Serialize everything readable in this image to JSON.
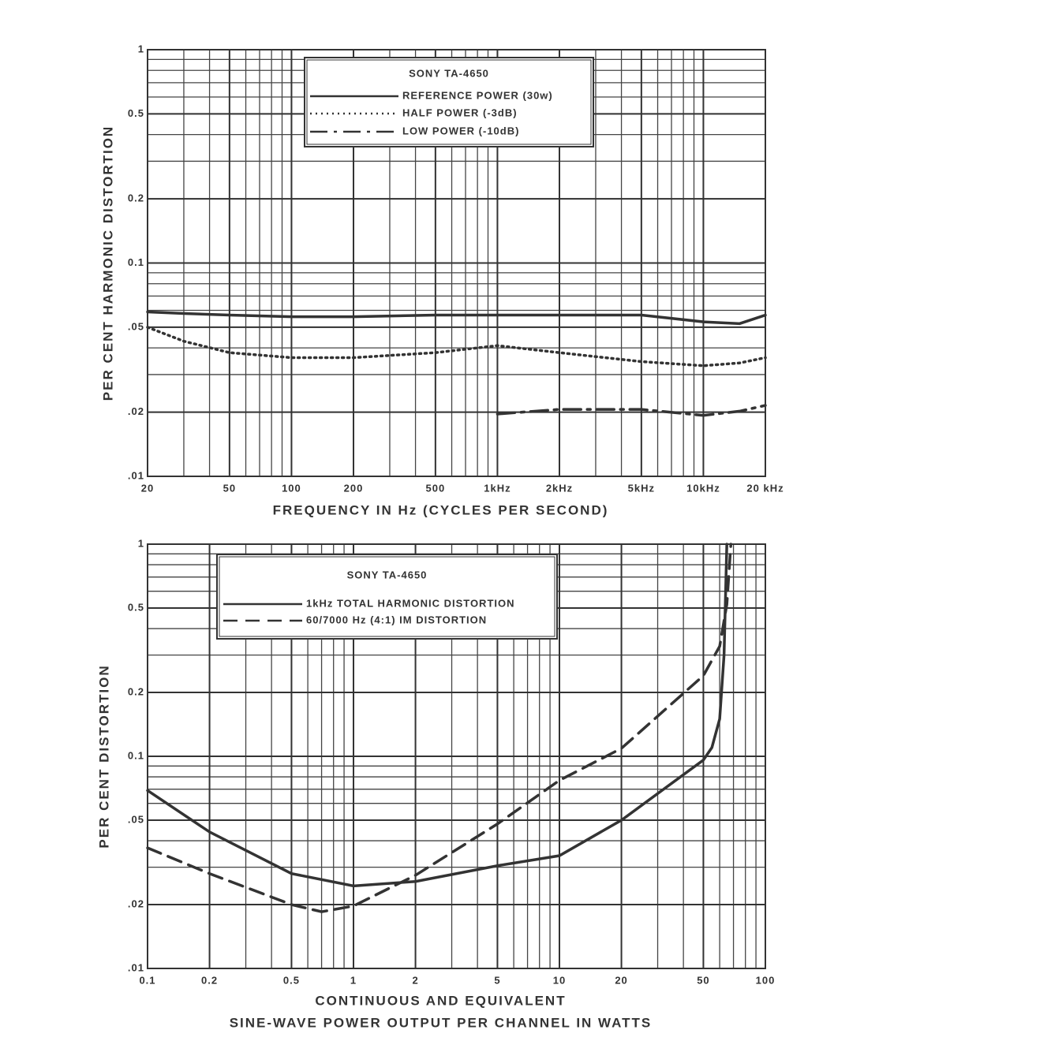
{
  "chart_data": [
    {
      "type": "line",
      "ylabel": "PER CENT HARMONIC DISTORTION",
      "xlabel": "FREQUENCY IN Hz (CYCLES PER SECOND)",
      "legend_title": "SONY TA-4650",
      "log_x": true,
      "log_y": true,
      "grid": true,
      "xlim": [
        20,
        20000
      ],
      "xticks": [
        20,
        50,
        100,
        200,
        500,
        {
          "value": 1000,
          "label": "1kHz"
        },
        {
          "value": 2000,
          "label": "2kHz"
        },
        {
          "value": 5000,
          "label": "5kHz"
        },
        {
          "value": 10000,
          "label": "10kHz"
        },
        {
          "value": 20000,
          "label": "20 kHz"
        }
      ],
      "ylim": [
        0.01,
        1
      ],
      "yticks": [
        {
          "value": 0.01,
          "label": ".01"
        },
        {
          "value": 0.02,
          "label": ".02"
        },
        {
          "value": 0.05,
          "label": ".05"
        },
        0.1,
        0.2,
        0.5,
        1
      ],
      "series": [
        {
          "name": "REFERENCE POWER (30w)",
          "color": "#333333",
          "style": "solid",
          "x": [
            20,
            30,
            50,
            100,
            200,
            500,
            1000,
            2000,
            5000,
            10000,
            15000,
            20000
          ],
          "values": [
            0.059,
            0.058,
            0.057,
            0.056,
            0.056,
            0.057,
            0.057,
            0.057,
            0.057,
            0.053,
            0.052,
            0.057
          ]
        },
        {
          "name": "HALF POWER (-3dB)",
          "color": "#333333",
          "style": "dotted",
          "x": [
            20,
            30,
            50,
            100,
            200,
            500,
            1000,
            2000,
            5000,
            10000,
            15000,
            20000
          ],
          "values": [
            0.05,
            0.043,
            0.038,
            0.036,
            0.036,
            0.038,
            0.041,
            0.038,
            0.0345,
            0.033,
            0.034,
            0.036
          ]
        },
        {
          "name": "LOW POWER (-10dB)",
          "color": "#333333",
          "style": "dashdot",
          "x": [
            20,
            30,
            50,
            100,
            200,
            500,
            1000,
            2000,
            5000,
            10000,
            15000,
            20000
          ],
          "values": [
            null,
            null,
            null,
            null,
            null,
            null,
            0.0196,
            0.0206,
            0.0206,
            0.0193,
            0.0202,
            0.0215
          ]
        }
      ]
    },
    {
      "type": "line",
      "ylabel": "PER CENT DISTORTION",
      "xlabel": [
        "CONTINUOUS AND EQUIVALENT",
        "SINE-WAVE POWER OUTPUT PER CHANNEL IN WATTS"
      ],
      "legend_title": "SONY TA-4650",
      "log_x": true,
      "log_y": true,
      "grid": true,
      "xlim": [
        0.1,
        100
      ],
      "xticks": [
        0.1,
        0.2,
        0.5,
        1,
        2,
        5,
        10,
        20,
        50,
        100
      ],
      "ylim": [
        0.01,
        1
      ],
      "yticks": [
        {
          "value": 0.01,
          "label": ".01"
        },
        {
          "value": 0.02,
          "label": ".02"
        },
        {
          "value": 0.05,
          "label": ".05"
        },
        0.1,
        0.2,
        0.5,
        1
      ],
      "series": [
        {
          "name": "1kHz TOTAL HARMONIC DISTORTION",
          "color": "#333333",
          "style": "solid",
          "x": [
            0.1,
            0.2,
            0.5,
            1,
            2,
            5,
            10,
            20,
            50,
            55,
            60,
            63,
            65
          ],
          "values": [
            0.069,
            0.044,
            0.028,
            0.0245,
            0.0257,
            0.0305,
            0.034,
            0.05,
            0.096,
            0.11,
            0.15,
            0.3,
            1
          ]
        },
        {
          "name": "60/7000 Hz (4:1) IM DISTORTION",
          "color": "#333333",
          "style": "dashed",
          "x": [
            0.1,
            0.2,
            0.5,
            0.7,
            1,
            2,
            5,
            10,
            20,
            50,
            60,
            65,
            68
          ],
          "values": [
            0.037,
            0.028,
            0.02,
            0.0185,
            0.0197,
            0.0275,
            0.048,
            0.077,
            0.109,
            0.24,
            0.33,
            0.52,
            1
          ]
        }
      ]
    }
  ]
}
